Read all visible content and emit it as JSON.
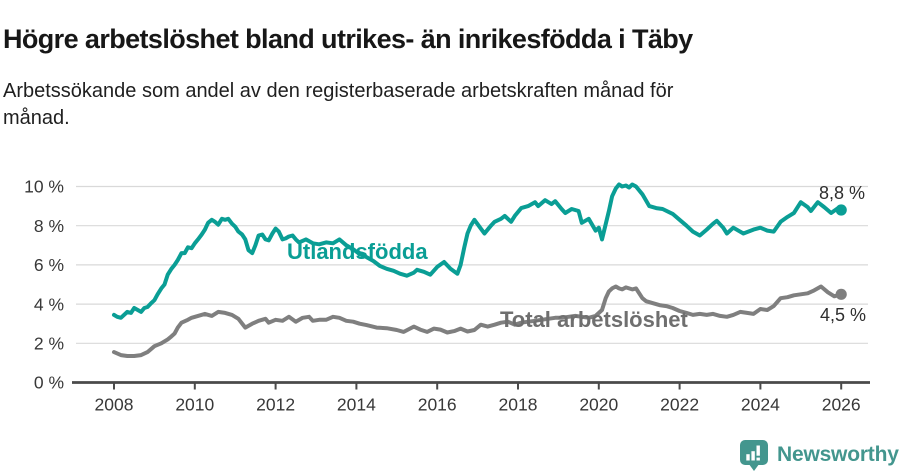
{
  "header": {
    "title": "Högre arbetslöshet bland utrikes- än inrikesfödda i Täby",
    "subtitle": "Arbetssökande som andel av den registerbaserade arbetskraften månad för\nmånad."
  },
  "footer": {
    "brand": "Newsworthy",
    "brand_color": "#43968e",
    "logo_icon": "newsworthy-pin-bar-chart-icon"
  },
  "colors": {
    "grid": "#d9d9d9",
    "axis": "#4a4a4a",
    "tick_text": "#383838",
    "end_label_text": "#2e2e2e"
  },
  "chart_data": {
    "type": "line",
    "title": "Högre arbetslöshet bland utrikes- än inrikesfödda i Täby",
    "xlabel": "",
    "ylabel": "Arbetssökande som andel av den registerbaserade arbetskraften",
    "xlim": [
      2007.2,
      2026.7
    ],
    "ylim": [
      0,
      10
    ],
    "grid": "horizontal",
    "legend_position": "inline-labels",
    "x_ticks": [
      2008,
      2010,
      2012,
      2014,
      2016,
      2018,
      2020,
      2022,
      2024,
      2026
    ],
    "y_ticks": [
      {
        "value": 0,
        "label": "0 %"
      },
      {
        "value": 2,
        "label": "2 %"
      },
      {
        "value": 4,
        "label": "4 %"
      },
      {
        "value": 6,
        "label": "6 %"
      },
      {
        "value": 8,
        "label": "8 %"
      },
      {
        "value": 10,
        "label": "10 %"
      }
    ],
    "series": [
      {
        "name": "utlandsfodda",
        "label": "Utlandsfödda",
        "color": "#0a9e95",
        "end_label": "8,8 %",
        "end_value": 8.8,
        "points": [
          [
            2008.0,
            3.45
          ],
          [
            2008.08,
            3.35
          ],
          [
            2008.17,
            3.3
          ],
          [
            2008.33,
            3.6
          ],
          [
            2008.42,
            3.55
          ],
          [
            2008.5,
            3.8
          ],
          [
            2008.67,
            3.6
          ],
          [
            2008.75,
            3.8
          ],
          [
            2008.83,
            3.85
          ],
          [
            2008.92,
            4.05
          ],
          [
            2009.0,
            4.2
          ],
          [
            2009.08,
            4.5
          ],
          [
            2009.17,
            4.8
          ],
          [
            2009.25,
            5.0
          ],
          [
            2009.33,
            5.5
          ],
          [
            2009.42,
            5.8
          ],
          [
            2009.5,
            6.0
          ],
          [
            2009.58,
            6.25
          ],
          [
            2009.67,
            6.6
          ],
          [
            2009.75,
            6.6
          ],
          [
            2009.83,
            6.9
          ],
          [
            2009.92,
            6.85
          ],
          [
            2010.0,
            7.1
          ],
          [
            2010.08,
            7.3
          ],
          [
            2010.17,
            7.55
          ],
          [
            2010.25,
            7.8
          ],
          [
            2010.33,
            8.15
          ],
          [
            2010.42,
            8.3
          ],
          [
            2010.5,
            8.2
          ],
          [
            2010.58,
            8.05
          ],
          [
            2010.67,
            8.35
          ],
          [
            2010.75,
            8.3
          ],
          [
            2010.83,
            8.35
          ],
          [
            2010.92,
            8.1
          ],
          [
            2011.0,
            7.95
          ],
          [
            2011.08,
            7.7
          ],
          [
            2011.17,
            7.55
          ],
          [
            2011.25,
            7.3
          ],
          [
            2011.33,
            6.75
          ],
          [
            2011.42,
            6.6
          ],
          [
            2011.5,
            7.0
          ],
          [
            2011.58,
            7.5
          ],
          [
            2011.67,
            7.55
          ],
          [
            2011.75,
            7.3
          ],
          [
            2011.83,
            7.25
          ],
          [
            2011.92,
            7.6
          ],
          [
            2012.0,
            7.85
          ],
          [
            2012.08,
            7.7
          ],
          [
            2012.17,
            7.3
          ],
          [
            2012.25,
            7.35
          ],
          [
            2012.33,
            7.45
          ],
          [
            2012.42,
            7.5
          ],
          [
            2012.5,
            7.3
          ],
          [
            2012.58,
            7.15
          ],
          [
            2012.75,
            7.3
          ],
          [
            2012.92,
            7.1
          ],
          [
            2013.08,
            7.05
          ],
          [
            2013.25,
            7.15
          ],
          [
            2013.42,
            7.1
          ],
          [
            2013.58,
            7.3
          ],
          [
            2013.75,
            7.0
          ],
          [
            2013.92,
            6.8
          ],
          [
            2014.08,
            6.55
          ],
          [
            2014.25,
            6.4
          ],
          [
            2014.42,
            6.2
          ],
          [
            2014.58,
            5.95
          ],
          [
            2014.75,
            5.8
          ],
          [
            2014.92,
            5.7
          ],
          [
            2015.08,
            5.55
          ],
          [
            2015.25,
            5.45
          ],
          [
            2015.42,
            5.6
          ],
          [
            2015.5,
            5.75
          ],
          [
            2015.67,
            5.65
          ],
          [
            2015.83,
            5.5
          ],
          [
            2016.0,
            5.9
          ],
          [
            2016.17,
            6.15
          ],
          [
            2016.33,
            5.8
          ],
          [
            2016.5,
            5.55
          ],
          [
            2016.58,
            6.0
          ],
          [
            2016.67,
            6.9
          ],
          [
            2016.75,
            7.6
          ],
          [
            2016.83,
            8.0
          ],
          [
            2016.92,
            8.3
          ],
          [
            2017.08,
            7.85
          ],
          [
            2017.17,
            7.6
          ],
          [
            2017.33,
            8.0
          ],
          [
            2017.42,
            8.2
          ],
          [
            2017.58,
            8.35
          ],
          [
            2017.67,
            8.5
          ],
          [
            2017.83,
            8.2
          ],
          [
            2017.92,
            8.5
          ],
          [
            2018.08,
            8.9
          ],
          [
            2018.25,
            9.0
          ],
          [
            2018.42,
            9.2
          ],
          [
            2018.5,
            9.0
          ],
          [
            2018.67,
            9.3
          ],
          [
            2018.83,
            9.1
          ],
          [
            2018.92,
            9.25
          ],
          [
            2019.08,
            8.85
          ],
          [
            2019.17,
            8.65
          ],
          [
            2019.33,
            8.85
          ],
          [
            2019.5,
            8.75
          ],
          [
            2019.58,
            8.15
          ],
          [
            2019.75,
            8.35
          ],
          [
            2019.92,
            7.75
          ],
          [
            2020.0,
            7.9
          ],
          [
            2020.08,
            7.3
          ],
          [
            2020.25,
            8.75
          ],
          [
            2020.33,
            9.5
          ],
          [
            2020.42,
            9.9
          ],
          [
            2020.5,
            10.1
          ],
          [
            2020.58,
            10.0
          ],
          [
            2020.67,
            10.05
          ],
          [
            2020.75,
            9.95
          ],
          [
            2020.83,
            10.1
          ],
          [
            2020.92,
            10.0
          ],
          [
            2021.08,
            9.6
          ],
          [
            2021.25,
            9.0
          ],
          [
            2021.42,
            8.9
          ],
          [
            2021.58,
            8.85
          ],
          [
            2021.83,
            8.6
          ],
          [
            2022.0,
            8.3
          ],
          [
            2022.17,
            8.0
          ],
          [
            2022.33,
            7.7
          ],
          [
            2022.5,
            7.5
          ],
          [
            2022.67,
            7.8
          ],
          [
            2022.83,
            8.1
          ],
          [
            2022.92,
            8.25
          ],
          [
            2023.08,
            7.9
          ],
          [
            2023.17,
            7.6
          ],
          [
            2023.33,
            7.9
          ],
          [
            2023.58,
            7.6
          ],
          [
            2023.83,
            7.8
          ],
          [
            2024.0,
            7.9
          ],
          [
            2024.17,
            7.75
          ],
          [
            2024.33,
            7.7
          ],
          [
            2024.5,
            8.2
          ],
          [
            2024.67,
            8.45
          ],
          [
            2024.83,
            8.65
          ],
          [
            2025.0,
            9.2
          ],
          [
            2025.17,
            8.95
          ],
          [
            2025.25,
            8.75
          ],
          [
            2025.42,
            9.2
          ],
          [
            2025.58,
            8.95
          ],
          [
            2025.75,
            8.65
          ],
          [
            2025.92,
            8.9
          ],
          [
            2026.0,
            8.8
          ]
        ]
      },
      {
        "name": "total-arbetsloshet",
        "label": "Total arbetslöshet",
        "color": "#7f7f7f",
        "label_color": "#6f6f6f",
        "end_label": "4,5 %",
        "end_value": 4.5,
        "points": [
          [
            2008.0,
            1.55
          ],
          [
            2008.17,
            1.4
          ],
          [
            2008.33,
            1.35
          ],
          [
            2008.5,
            1.35
          ],
          [
            2008.67,
            1.4
          ],
          [
            2008.83,
            1.55
          ],
          [
            2009.0,
            1.85
          ],
          [
            2009.17,
            2.0
          ],
          [
            2009.33,
            2.2
          ],
          [
            2009.42,
            2.35
          ],
          [
            2009.5,
            2.5
          ],
          [
            2009.58,
            2.8
          ],
          [
            2009.67,
            3.05
          ],
          [
            2009.83,
            3.2
          ],
          [
            2009.92,
            3.3
          ],
          [
            2010.08,
            3.4
          ],
          [
            2010.25,
            3.5
          ],
          [
            2010.42,
            3.4
          ],
          [
            2010.58,
            3.6
          ],
          [
            2010.75,
            3.55
          ],
          [
            2010.92,
            3.45
          ],
          [
            2011.08,
            3.25
          ],
          [
            2011.25,
            2.8
          ],
          [
            2011.42,
            3.0
          ],
          [
            2011.58,
            3.15
          ],
          [
            2011.75,
            3.25
          ],
          [
            2011.83,
            3.05
          ],
          [
            2012.0,
            3.2
          ],
          [
            2012.17,
            3.15
          ],
          [
            2012.33,
            3.35
          ],
          [
            2012.5,
            3.1
          ],
          [
            2012.67,
            3.3
          ],
          [
            2012.83,
            3.35
          ],
          [
            2012.92,
            3.15
          ],
          [
            2013.08,
            3.2
          ],
          [
            2013.25,
            3.2
          ],
          [
            2013.42,
            3.35
          ],
          [
            2013.58,
            3.3
          ],
          [
            2013.75,
            3.15
          ],
          [
            2013.92,
            3.1
          ],
          [
            2014.08,
            3.0
          ],
          [
            2014.25,
            2.93
          ],
          [
            2014.5,
            2.8
          ],
          [
            2014.75,
            2.77
          ],
          [
            2015.0,
            2.68
          ],
          [
            2015.17,
            2.58
          ],
          [
            2015.42,
            2.85
          ],
          [
            2015.58,
            2.7
          ],
          [
            2015.75,
            2.58
          ],
          [
            2015.92,
            2.75
          ],
          [
            2016.08,
            2.7
          ],
          [
            2016.25,
            2.55
          ],
          [
            2016.42,
            2.62
          ],
          [
            2016.58,
            2.75
          ],
          [
            2016.75,
            2.6
          ],
          [
            2016.92,
            2.68
          ],
          [
            2017.08,
            2.95
          ],
          [
            2017.25,
            2.85
          ],
          [
            2017.42,
            2.95
          ],
          [
            2017.58,
            3.05
          ],
          [
            2017.75,
            3.1
          ],
          [
            2017.92,
            2.95
          ],
          [
            2018.08,
            3.05
          ],
          [
            2018.25,
            3.1
          ],
          [
            2018.42,
            3.15
          ],
          [
            2018.58,
            3.2
          ],
          [
            2018.75,
            3.25
          ],
          [
            2018.92,
            3.3
          ],
          [
            2019.08,
            3.3
          ],
          [
            2019.25,
            3.35
          ],
          [
            2019.42,
            3.4
          ],
          [
            2019.58,
            3.35
          ],
          [
            2019.75,
            3.3
          ],
          [
            2019.92,
            3.4
          ],
          [
            2020.08,
            3.7
          ],
          [
            2020.17,
            4.3
          ],
          [
            2020.25,
            4.65
          ],
          [
            2020.33,
            4.8
          ],
          [
            2020.42,
            4.9
          ],
          [
            2020.5,
            4.8
          ],
          [
            2020.58,
            4.75
          ],
          [
            2020.67,
            4.85
          ],
          [
            2020.75,
            4.8
          ],
          [
            2020.83,
            4.75
          ],
          [
            2020.92,
            4.8
          ],
          [
            2021.08,
            4.3
          ],
          [
            2021.17,
            4.15
          ],
          [
            2021.33,
            4.05
          ],
          [
            2021.5,
            3.95
          ],
          [
            2021.67,
            3.9
          ],
          [
            2021.83,
            3.8
          ],
          [
            2022.0,
            3.65
          ],
          [
            2022.17,
            3.55
          ],
          [
            2022.33,
            3.45
          ],
          [
            2022.5,
            3.5
          ],
          [
            2022.67,
            3.45
          ],
          [
            2022.83,
            3.5
          ],
          [
            2023.0,
            3.4
          ],
          [
            2023.17,
            3.35
          ],
          [
            2023.33,
            3.45
          ],
          [
            2023.5,
            3.6
          ],
          [
            2023.67,
            3.55
          ],
          [
            2023.83,
            3.5
          ],
          [
            2024.0,
            3.75
          ],
          [
            2024.17,
            3.7
          ],
          [
            2024.33,
            3.9
          ],
          [
            2024.5,
            4.3
          ],
          [
            2024.67,
            4.35
          ],
          [
            2024.83,
            4.45
          ],
          [
            2025.0,
            4.5
          ],
          [
            2025.17,
            4.55
          ],
          [
            2025.33,
            4.7
          ],
          [
            2025.5,
            4.9
          ],
          [
            2025.67,
            4.6
          ],
          [
            2025.83,
            4.4
          ],
          [
            2026.0,
            4.5
          ]
        ]
      }
    ]
  }
}
